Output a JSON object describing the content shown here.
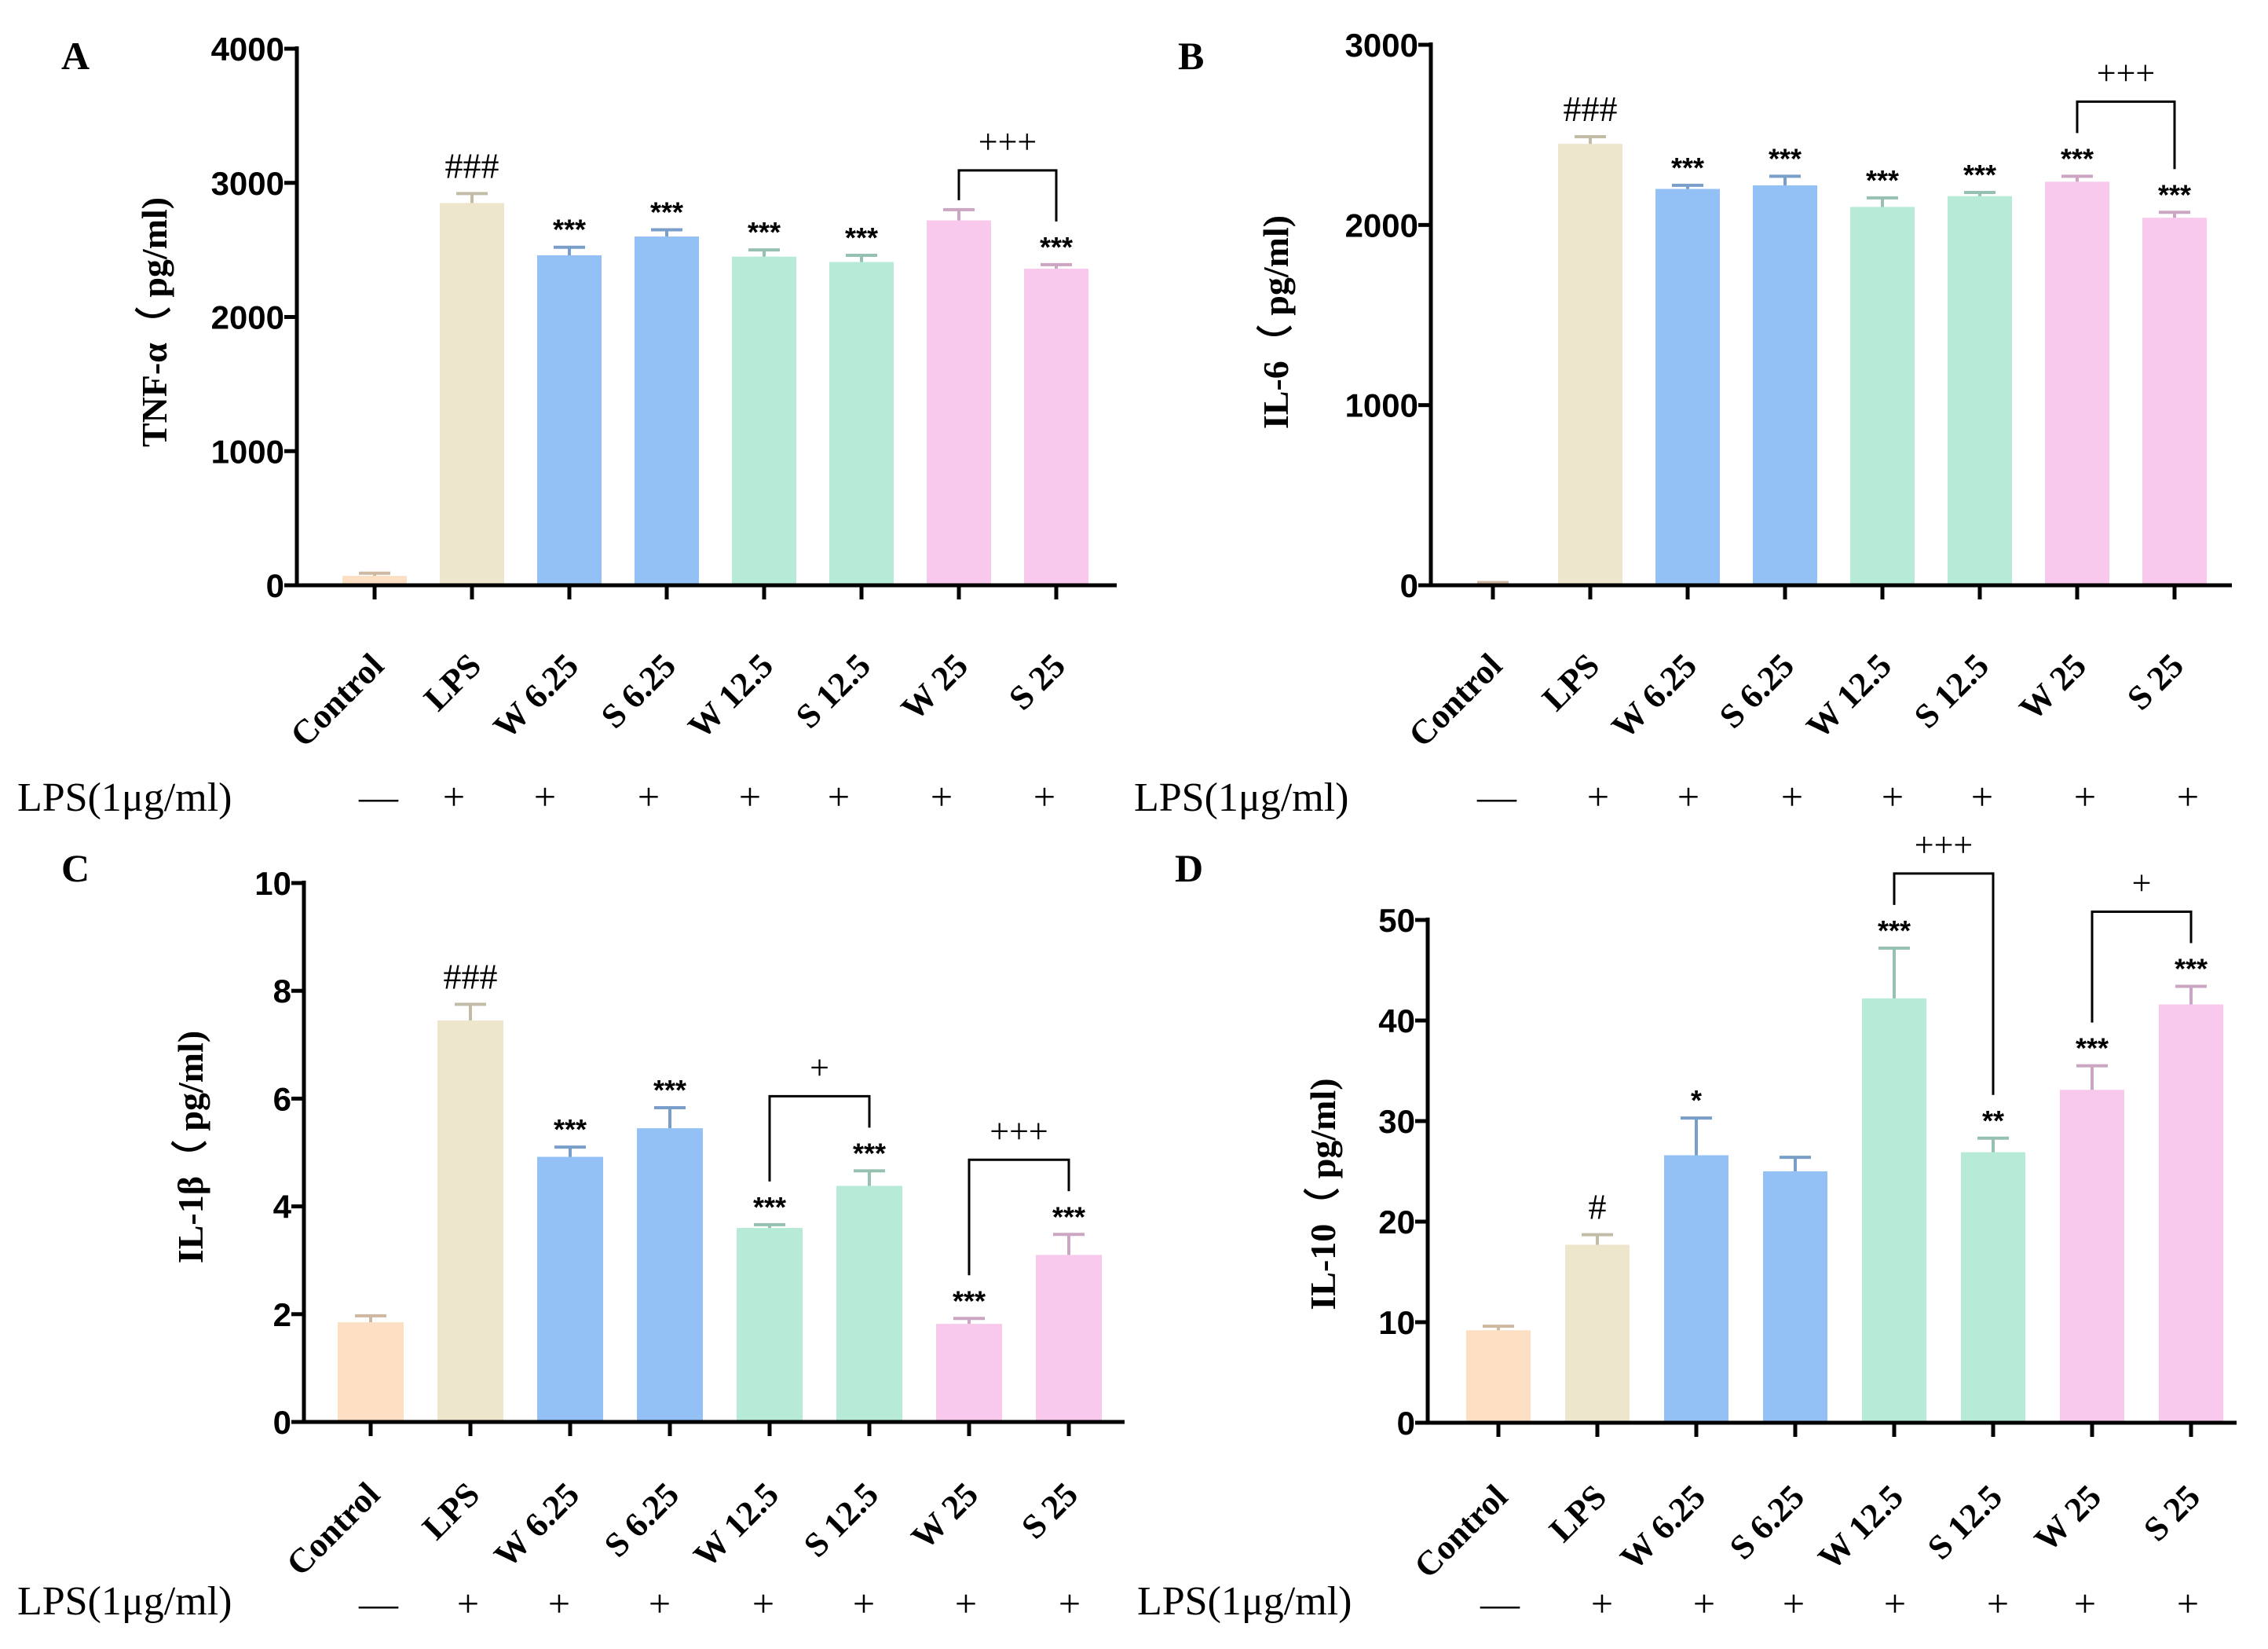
{
  "colors": {
    "Control": "#fde0c4",
    "LPS": "#ede5cc",
    "W 6.25": "#93c1f5",
    "S 6.25": "#93c1f5",
    "W 12.5": "#b7ebd7",
    "S 12.5": "#b7ebd7",
    "W 25": "#f8c9ec",
    "S 25": "#f8c9ec"
  },
  "chart_data": [
    {
      "panel": "A",
      "type": "bar",
      "ylabel": "TNF-α（ pg/ml)",
      "ylim": [
        0,
        4000
      ],
      "yticks": [
        0,
        1000,
        2000,
        3000,
        4000
      ],
      "categories": [
        "Control",
        "LPS",
        "W 6.25",
        "S 6.25",
        "W 12.5",
        "S 12.5",
        "W 25",
        "S 25"
      ],
      "values": [
        70,
        2850,
        2460,
        2600,
        2450,
        2410,
        2720,
        2360
      ],
      "errors": [
        20,
        70,
        60,
        50,
        50,
        50,
        80,
        30
      ],
      "significance": [
        "",
        "###",
        "***",
        "***",
        "***",
        "***",
        "",
        "***"
      ],
      "comparisons": [
        {
          "from": "W 25",
          "to": "S 25",
          "label": "+++"
        }
      ],
      "lps_row_label": "LPS(1μg/ml)",
      "lps_row": [
        "—",
        "+",
        "+",
        "+",
        "+",
        "+",
        "+",
        "+"
      ]
    },
    {
      "panel": "B",
      "type": "bar",
      "ylabel": "IL-6（ pg/ml)",
      "ylim": [
        0,
        3000
      ],
      "yticks": [
        0,
        1000,
        2000,
        3000
      ],
      "categories": [
        "Control",
        "LPS",
        "W 6.25",
        "S 6.25",
        "W 12.5",
        "S 12.5",
        "W 25",
        "S 25"
      ],
      "values": [
        10,
        2450,
        2200,
        2220,
        2100,
        2160,
        2240,
        2040
      ],
      "errors": [
        5,
        40,
        20,
        50,
        50,
        20,
        30,
        30
      ],
      "significance": [
        "",
        "###",
        "***",
        "***",
        "***",
        "***",
        "***",
        "***"
      ],
      "comparisons": [
        {
          "from": "W 25",
          "to": "S 25",
          "label": "+++"
        }
      ],
      "lps_row_label": "LPS(1μg/ml)",
      "lps_row": [
        "—",
        "+",
        "+",
        "+",
        "+",
        "+",
        "+",
        "+"
      ]
    },
    {
      "panel": "C",
      "type": "bar",
      "ylabel": "IL-1β（ pg/ml)",
      "ylim": [
        0,
        10
      ],
      "yticks": [
        0,
        2,
        4,
        6,
        8,
        10
      ],
      "categories": [
        "Control",
        "LPS",
        "W 6.25",
        "S 6.25",
        "W 12.5",
        "S 12.5",
        "W 25",
        "S 25"
      ],
      "values": [
        1.85,
        7.45,
        4.92,
        5.45,
        3.6,
        4.38,
        1.82,
        3.1
      ],
      "errors": [
        0.12,
        0.3,
        0.18,
        0.38,
        0.06,
        0.28,
        0.1,
        0.38
      ],
      "significance": [
        "",
        "###",
        "***",
        "***",
        "***",
        "***",
        "***",
        "***"
      ],
      "comparisons": [
        {
          "from": "W 12.5",
          "to": "S 12.5",
          "label": "+"
        },
        {
          "from": "W 25",
          "to": "S 25",
          "label": "+++"
        }
      ],
      "lps_row_label": "LPS(1μg/ml)",
      "lps_row": [
        "—",
        "+",
        "+",
        "+",
        "+",
        "+",
        "+",
        "+"
      ]
    },
    {
      "panel": "D",
      "type": "bar",
      "ylabel": "IL-10（ pg/ml)",
      "ylim": [
        0,
        50
      ],
      "yticks": [
        0,
        10,
        20,
        30,
        40,
        50
      ],
      "categories": [
        "Control",
        "LPS",
        "W 6.25",
        "S 6.25",
        "W 12.5",
        "S 12.5",
        "W 25",
        "S 25"
      ],
      "values": [
        9.2,
        17.7,
        26.6,
        25.0,
        42.2,
        26.9,
        33.1,
        41.6
      ],
      "errors": [
        0.4,
        1.0,
        3.7,
        1.4,
        5.0,
        1.4,
        2.4,
        1.8
      ],
      "significance": [
        "",
        "#",
        "*",
        "",
        "***",
        "**",
        "***",
        "***"
      ],
      "comparisons": [
        {
          "from": "W 12.5",
          "to": "S 12.5",
          "label": "+++"
        },
        {
          "from": "W 25",
          "to": "S 25",
          "label": "+"
        }
      ],
      "lps_row_label": "LPS(1μg/ml)",
      "lps_row": [
        "—",
        "+",
        "+",
        "+",
        "+",
        "+",
        "+",
        "+"
      ]
    }
  ]
}
